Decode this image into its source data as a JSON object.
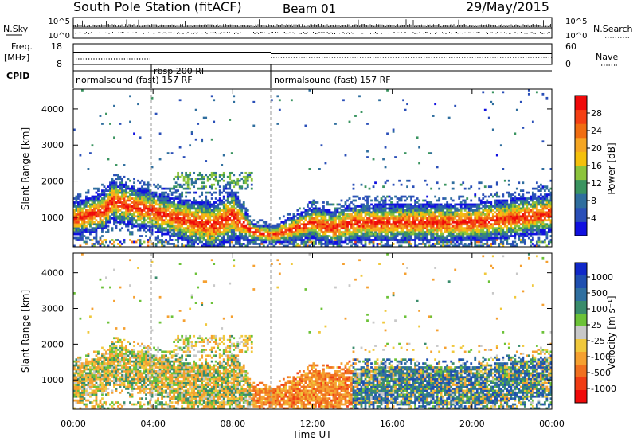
{
  "header": {
    "station": "South Pole Station (fitACF)",
    "beam": "Beam 01",
    "date": "29/May/2015"
  },
  "strip_labels": {
    "nsky": "N.Sky",
    "nsearch": "N.Search",
    "freq": "Freq.",
    "freq_unit": "[MHz]",
    "nave": "Nave",
    "cpid": "CPID"
  },
  "noise_ticks": {
    "top": "10^5",
    "bottom": "10^0"
  },
  "freq_ticks": {
    "top": "18",
    "bottom": "8"
  },
  "nave_ticks": {
    "top": "60",
    "bottom": "0"
  },
  "cpid_segments": [
    {
      "label": "normalsound (fast) 157 RF"
    },
    {
      "label": "rbsp 200 RF"
    },
    {
      "label": "normalsound (fast) 157 RF"
    }
  ],
  "colors": {
    "power": [
      "#1010e0",
      "#2a4fb8",
      "#2f6e9e",
      "#3a9460",
      "#8cc43c",
      "#f4c00c",
      "#f5a623",
      "#f06d12",
      "#f43f14",
      "#f00a0a"
    ],
    "velocity": [
      "#1028c8",
      "#1f4fb0",
      "#2f6fa0",
      "#3a8c6c",
      "#6cc238",
      "#c8c8c8",
      "#f0c83c",
      "#f5a030",
      "#f07020",
      "#f03c14",
      "#f00a0a"
    ]
  },
  "chart_data": [
    {
      "type": "heatmap",
      "title": "Power",
      "xlabel": "",
      "ylabel": "Slant Range [km]",
      "x_ticks": [
        "00:00",
        "04:00",
        "08:00",
        "12:00",
        "16:00",
        "20:00",
        "00:00"
      ],
      "y_ticks": [
        "1000",
        "2000",
        "3000",
        "4000"
      ],
      "ylim": [
        180,
        4550
      ],
      "colorbar_label": "Power [dB]",
      "colorbar_ticks": [
        "4",
        "8",
        "12",
        "16",
        "20",
        "24",
        "28"
      ],
      "colorbar_range": [
        0,
        32
      ]
    },
    {
      "type": "heatmap",
      "title": "Velocity",
      "xlabel": "Time UT",
      "ylabel": "Slant Range [km]",
      "x_ticks": [
        "00:00",
        "04:00",
        "08:00",
        "12:00",
        "16:00",
        "20:00",
        "00:00"
      ],
      "y_ticks": [
        "1000",
        "2000",
        "3000",
        "4000"
      ],
      "ylim": [
        180,
        4550
      ],
      "colorbar_label": "Velocity [m s⁻¹]",
      "colorbar_ticks": [
        "1000",
        "500",
        "100",
        "25",
        "-25",
        "-100",
        "-500",
        "-1000"
      ]
    }
  ]
}
